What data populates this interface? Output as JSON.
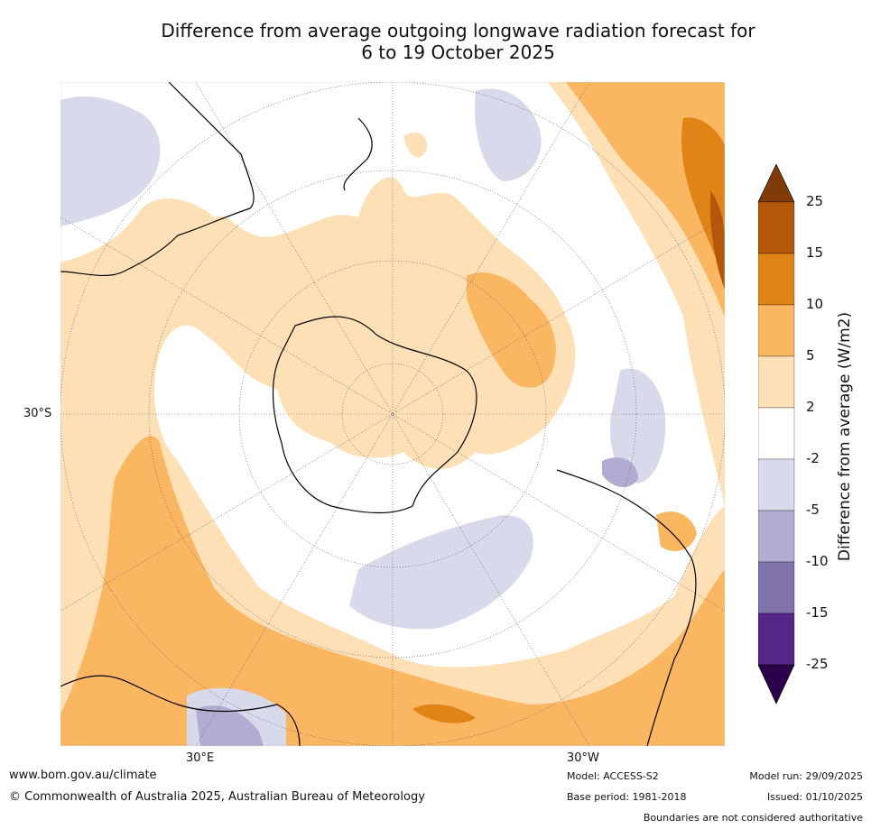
{
  "title": {
    "line1": "Difference from average outgoing longwave radiation forecast for",
    "line2": "6 to 19 October 2025"
  },
  "map": {
    "projection": "south polar stereographic",
    "lat_label": "30°S",
    "lon_labels": [
      "30°E",
      "30°W"
    ],
    "palette": {
      "pos_2_5": "#fde0b6",
      "pos_5_10": "#fbb662",
      "pos_10_15": "#e08418",
      "pos_15_25": "#b3580a",
      "pos_over_25": "#7f3b08",
      "neg_2_5": "#d8d9ea",
      "neg_5_10": "#b2abd2",
      "neg_10_15": "#8073ac",
      "neg_15_25": "#542788",
      "neg_under_25": "#2d004b",
      "neutral": "#ffffff",
      "coast": "#000000",
      "border": "#808080"
    }
  },
  "colorbar": {
    "title": "Difference from average (W/m2)",
    "ticks": [
      "25",
      "15",
      "10",
      "5",
      "2",
      "-2",
      "-5",
      "-10",
      "-15",
      "-25"
    ]
  },
  "footer": {
    "website": "www.bom.gov.au/climate",
    "copyright": "© Commonwealth of Australia 2025, Australian Bureau of Meteorology",
    "model": "Model: ACCESS-S2",
    "base_period": "Base period: 1981-2018",
    "model_run": "Model run: 29/09/2025",
    "issued": "Issued: 01/10/2025",
    "disclaimer": "Boundaries are not considered authoritative"
  }
}
